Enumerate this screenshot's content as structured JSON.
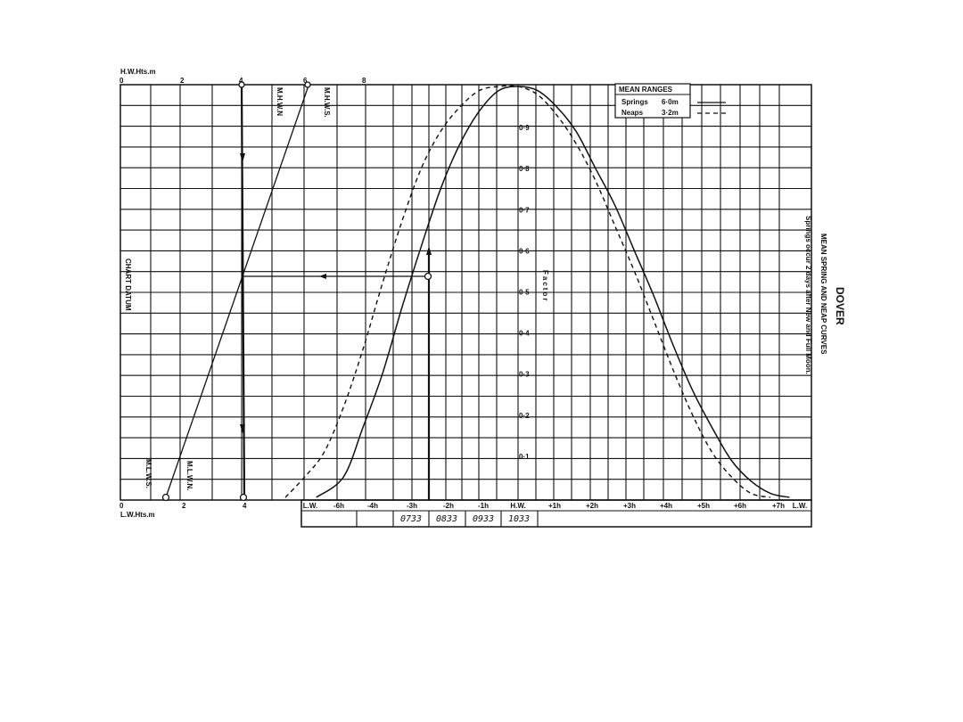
{
  "title": "DOVER",
  "subtitle_1": "MEAN SPRING AND NEAP CURVES",
  "subtitle_2": "Springs occur 2 days after New and Full Moon.",
  "legend": {
    "heading": "MEAN RANGES",
    "springs_label": "Springs",
    "springs_value": "6·0m",
    "neaps_label": "Neaps",
    "neaps_value": "3·2m"
  },
  "hw_axis_label": "H.W.Hts.m",
  "lw_axis_label": "L.W.Hts.m",
  "chart_datum_label": "CHART DATUM",
  "factor_label": "Factor",
  "hw_ticks": [
    "0",
    "2",
    "4",
    "6",
    "8"
  ],
  "lw_ticks": [
    "0",
    "2",
    "4"
  ],
  "height_line_labels": {
    "mhwn": "M.H.W.N",
    "mhws": "M.H.W.S.",
    "mlws": "M.L.W.S.",
    "mlwn": "M.L.W.N."
  },
  "time_labels": [
    "L.W.",
    "-6h",
    "-4h",
    "-3h",
    "-2h",
    "-1h",
    "H.W.",
    "+1h",
    "+2h",
    "+3h",
    "+4h",
    "+5h",
    "+6h",
    "+7h",
    "L.W."
  ],
  "time_entries": [
    "0733",
    "0833",
    "0933",
    "1033"
  ],
  "chart_data": {
    "type": "line",
    "title": "DOVER",
    "subtitle": "MEAN SPRING AND NEAP CURVES",
    "y_label": "Factor",
    "y_ticks": [
      0.1,
      0.2,
      0.3,
      0.4,
      0.5,
      0.6,
      0.7,
      0.8,
      0.9
    ],
    "ylim": [
      0,
      1
    ],
    "x_ticks": [
      "L.W.",
      "-6h",
      "-4h",
      "-3h",
      "-2h",
      "-1h",
      "H.W.",
      "+1h",
      "+2h",
      "+3h",
      "+4h",
      "+5h",
      "+6h",
      "+7h",
      "L.W."
    ],
    "series": [
      {
        "name": "Springs",
        "points": [
          [
            -5.2,
            0
          ],
          [
            -4.5,
            0.05
          ],
          [
            -4,
            0.17
          ],
          [
            -3.5,
            0.3
          ],
          [
            -3,
            0.46
          ],
          [
            -2.5,
            0.61
          ],
          [
            -2,
            0.75
          ],
          [
            -1.5,
            0.86
          ],
          [
            -1,
            0.94
          ],
          [
            -0.5,
            0.99
          ],
          [
            0,
            1
          ],
          [
            0.5,
            0.99
          ],
          [
            1,
            0.95
          ],
          [
            1.5,
            0.89
          ],
          [
            2,
            0.8
          ],
          [
            2.5,
            0.71
          ],
          [
            3,
            0.6
          ],
          [
            3.5,
            0.49
          ],
          [
            4,
            0.37
          ],
          [
            4.5,
            0.26
          ],
          [
            5,
            0.17
          ],
          [
            5.5,
            0.09
          ],
          [
            6,
            0.04
          ],
          [
            6.5,
            0.01
          ],
          [
            7,
            0
          ]
        ]
      },
      {
        "name": "Neaps",
        "points": [
          [
            -6,
            0
          ],
          [
            -5.5,
            0.05
          ],
          [
            -5,
            0.11
          ],
          [
            -4.5,
            0.22
          ],
          [
            -4,
            0.36
          ],
          [
            -3.5,
            0.52
          ],
          [
            -3,
            0.67
          ],
          [
            -2.5,
            0.8
          ],
          [
            -2,
            0.89
          ],
          [
            -1.5,
            0.95
          ],
          [
            -1,
            0.99
          ],
          [
            -0.5,
            1
          ],
          [
            0,
            1
          ],
          [
            0.5,
            0.98
          ],
          [
            1,
            0.93
          ],
          [
            1.5,
            0.86
          ],
          [
            2,
            0.77
          ],
          [
            2.5,
            0.66
          ],
          [
            3,
            0.55
          ],
          [
            3.5,
            0.43
          ],
          [
            4,
            0.31
          ],
          [
            4.5,
            0.2
          ],
          [
            5,
            0.11
          ],
          [
            5.5,
            0.05
          ],
          [
            6,
            0.01
          ],
          [
            6.5,
            0
          ]
        ]
      }
    ]
  }
}
